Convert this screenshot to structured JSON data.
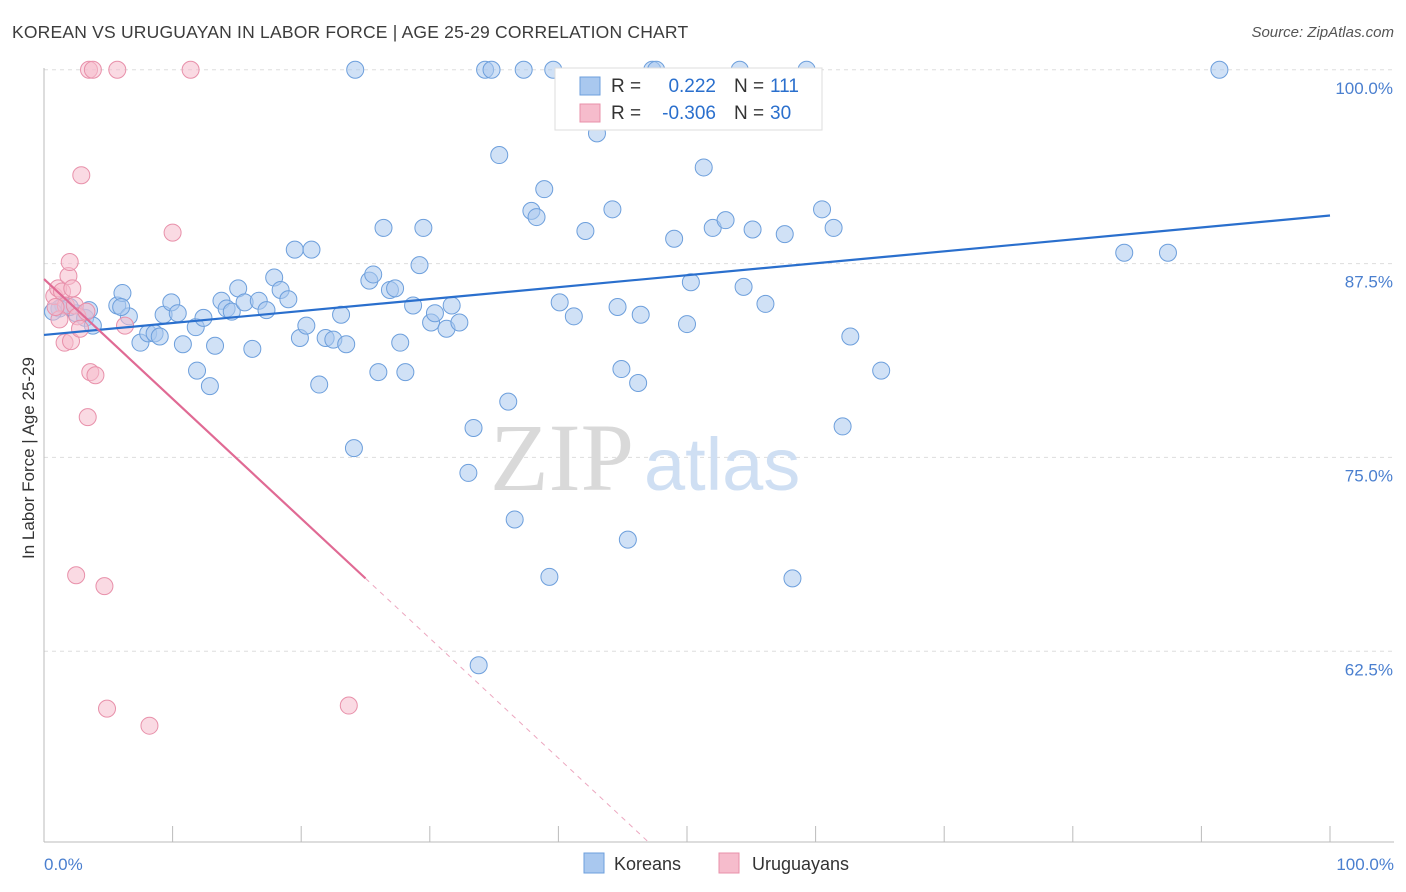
{
  "title": "KOREAN VS URUGUAYAN IN LABOR FORCE | AGE 25-29 CORRELATION CHART",
  "source": "Source: ZipAtlas.com",
  "watermark": {
    "zip": "ZIP",
    "atlas": "atlas"
  },
  "colors": {
    "korean_fill": "#a9c8ef",
    "korean_stroke": "#6d9fdc",
    "korean_line": "#2a6fcd",
    "uruguayan_fill": "#f6bccc",
    "uruguayan_stroke": "#e890aa",
    "uruguayan_line": "#e06a94",
    "axis_text": "#4a7fcf",
    "grid": "#dddddd"
  },
  "legend": {
    "rows": [
      {
        "r_label": "R =",
        "r_value": "0.222",
        "n_label": "N =",
        "n_value": "111"
      },
      {
        "r_label": "R =",
        "r_value": "-0.306",
        "n_label": "N =",
        "n_value": "30"
      }
    ]
  },
  "chart_data": {
    "type": "scatter",
    "title": "KOREAN VS URUGUAYAN IN LABOR FORCE | AGE 25-29 CORRELATION CHART",
    "xlabel": "",
    "ylabel": "In Labor Force | Age 25-29",
    "xlim": [
      0,
      100
    ],
    "ylim": [
      50.2,
      100.5
    ],
    "x_tick_labels": [
      "0.0%",
      "100.0%"
    ],
    "y_ticks": [
      100,
      87.5,
      75,
      62.5
    ],
    "y_tick_labels": [
      "100.0%",
      "87.5%",
      "75.0%",
      "62.5%"
    ],
    "grid": true,
    "legend_position": "top-center",
    "series": [
      {
        "name": "Koreans",
        "r": 0.222,
        "n": 111,
        "trend": {
          "x": [
            0,
            100
          ],
          "y": [
            82.9,
            90.6
          ]
        },
        "points": [
          [
            1.5,
            84.8
          ],
          [
            2.5,
            84.3
          ],
          [
            3.2,
            84.0
          ],
          [
            3.8,
            83.5
          ],
          [
            1.2,
            84.6
          ],
          [
            2.0,
            84.7
          ],
          [
            5.7,
            84.8
          ],
          [
            6.1,
            85.6
          ],
          [
            6.6,
            84.1
          ],
          [
            7.5,
            82.4
          ],
          [
            8.1,
            83.0
          ],
          [
            8.6,
            83.0
          ],
          [
            9.3,
            84.2
          ],
          [
            9.9,
            85.0
          ],
          [
            10.4,
            84.3
          ],
          [
            10.8,
            82.3
          ],
          [
            11.8,
            83.4
          ],
          [
            12.4,
            84.0
          ],
          [
            11.9,
            80.6
          ],
          [
            12.9,
            79.6
          ],
          [
            13.3,
            82.2
          ],
          [
            13.8,
            85.1
          ],
          [
            14.2,
            84.6
          ],
          [
            14.6,
            84.4
          ],
          [
            15.1,
            85.9
          ],
          [
            15.6,
            85.0
          ],
          [
            16.2,
            82.0
          ],
          [
            16.7,
            85.1
          ],
          [
            17.3,
            84.5
          ],
          [
            17.9,
            86.6
          ],
          [
            18.4,
            85.8
          ],
          [
            19.0,
            85.2
          ],
          [
            19.5,
            88.4
          ],
          [
            19.9,
            82.7
          ],
          [
            20.4,
            83.5
          ],
          [
            20.8,
            88.4
          ],
          [
            21.4,
            79.7
          ],
          [
            21.9,
            82.7
          ],
          [
            22.5,
            82.6
          ],
          [
            23.1,
            84.2
          ],
          [
            23.5,
            82.3
          ],
          [
            24.1,
            75.6
          ],
          [
            25.3,
            86.4
          ],
          [
            25.6,
            86.8
          ],
          [
            26.0,
            80.5
          ],
          [
            26.4,
            89.8
          ],
          [
            26.9,
            85.8
          ],
          [
            27.3,
            85.9
          ],
          [
            27.7,
            82.4
          ],
          [
            28.1,
            80.5
          ],
          [
            28.7,
            84.8
          ],
          [
            29.2,
            87.4
          ],
          [
            29.5,
            89.8
          ],
          [
            30.1,
            83.7
          ],
          [
            30.4,
            84.3
          ],
          [
            31.3,
            83.3
          ],
          [
            31.7,
            84.8
          ],
          [
            32.3,
            83.7
          ],
          [
            33.0,
            74.0
          ],
          [
            33.4,
            76.9
          ],
          [
            33.8,
            61.6
          ],
          [
            34.3,
            100.0
          ],
          [
            35.4,
            94.5
          ],
          [
            36.1,
            78.6
          ],
          [
            36.6,
            71.0
          ],
          [
            37.3,
            100.0
          ],
          [
            37.9,
            90.9
          ],
          [
            38.3,
            90.5
          ],
          [
            38.9,
            92.3
          ],
          [
            39.3,
            67.3
          ],
          [
            40.1,
            85.0
          ],
          [
            41.2,
            84.1
          ],
          [
            42.1,
            89.6
          ],
          [
            43.0,
            95.9
          ],
          [
            44.2,
            91.0
          ],
          [
            44.9,
            80.7
          ],
          [
            45.4,
            69.7
          ],
          [
            46.2,
            79.8
          ],
          [
            46.4,
            84.2
          ],
          [
            47.3,
            100.0
          ],
          [
            47.8,
            96.9
          ],
          [
            49.0,
            89.1
          ],
          [
            50.0,
            83.6
          ],
          [
            50.3,
            86.3
          ],
          [
            51.3,
            93.7
          ],
          [
            52.0,
            89.8
          ],
          [
            53.0,
            90.3
          ],
          [
            54.4,
            86.0
          ],
          [
            55.1,
            89.7
          ],
          [
            56.1,
            84.9
          ],
          [
            57.6,
            89.4
          ],
          [
            58.2,
            67.2
          ],
          [
            59.3,
            100.0
          ],
          [
            60.5,
            91.0
          ],
          [
            61.4,
            89.8
          ],
          [
            62.1,
            77.0
          ],
          [
            62.7,
            82.8
          ],
          [
            65.1,
            80.6
          ],
          [
            84.0,
            88.2
          ],
          [
            87.4,
            88.2
          ],
          [
            91.4,
            100.0
          ],
          [
            24.2,
            100.0
          ],
          [
            34.8,
            100.0
          ],
          [
            39.6,
            100.0
          ],
          [
            47.6,
            100.0
          ],
          [
            54.1,
            100.0
          ],
          [
            6.0,
            84.7
          ],
          [
            3.5,
            84.5
          ],
          [
            9.0,
            82.8
          ],
          [
            44.6,
            84.7
          ],
          [
            0.7,
            84.4
          ]
        ]
      },
      {
        "name": "Uruguayans",
        "r": -0.306,
        "n": 30,
        "trend": {
          "x": [
            0,
            25
          ],
          "y": [
            86.5,
            67.2
          ]
        },
        "trend_dashed_extension": {
          "x": [
            25,
            47
          ],
          "y": [
            67.2,
            50.2
          ]
        },
        "points": [
          [
            0.8,
            85.4
          ],
          [
            1.1,
            85.9
          ],
          [
            1.4,
            85.7
          ],
          [
            1.7,
            84.8
          ],
          [
            1.2,
            83.9
          ],
          [
            1.6,
            82.4
          ],
          [
            1.9,
            86.7
          ],
          [
            2.0,
            87.6
          ],
          [
            2.1,
            82.5
          ],
          [
            2.4,
            84.8
          ],
          [
            2.2,
            85.9
          ],
          [
            2.6,
            84.1
          ],
          [
            2.8,
            83.3
          ],
          [
            2.9,
            93.2
          ],
          [
            3.3,
            84.4
          ],
          [
            3.5,
            100.0
          ],
          [
            3.8,
            100.0
          ],
          [
            3.6,
            80.5
          ],
          [
            4.0,
            80.3
          ],
          [
            3.4,
            77.6
          ],
          [
            2.5,
            67.4
          ],
          [
            4.7,
            66.7
          ],
          [
            5.7,
            100.0
          ],
          [
            6.3,
            83.5
          ],
          [
            8.2,
            57.7
          ],
          [
            10.0,
            89.5
          ],
          [
            11.4,
            100.0
          ],
          [
            4.9,
            58.8
          ],
          [
            23.7,
            59.0
          ],
          [
            0.9,
            84.7
          ]
        ]
      }
    ]
  }
}
